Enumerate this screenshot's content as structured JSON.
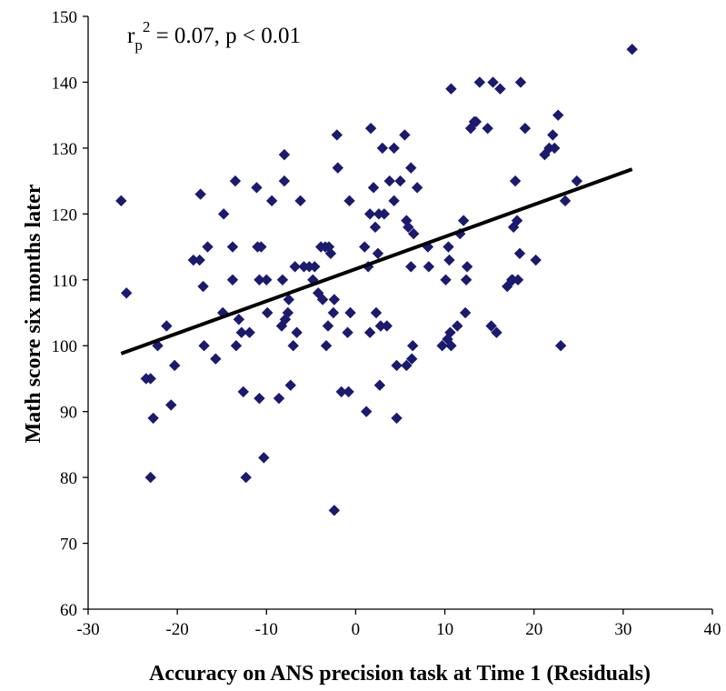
{
  "chart_data": {
    "type": "scatter",
    "title": "",
    "xlabel": "Accuracy on ANS precision task at Time 1 (Residuals)",
    "ylabel": "Math score six months later",
    "xlim": [
      -30,
      40
    ],
    "ylim": [
      60,
      150
    ],
    "xticks": [
      "-30",
      "-20",
      "-10",
      "0",
      "10",
      "20",
      "30",
      "40"
    ],
    "yticks": [
      "60",
      "70",
      "80",
      "90",
      "100",
      "110",
      "120",
      "130",
      "140",
      "150"
    ],
    "grid": false,
    "legend": "none",
    "marker_color": "#1a1a6e",
    "line_color": "#000000",
    "annotation": {
      "prefix": "r",
      "subscript": "p",
      "superscript": "2",
      "suffix": " = 0.07, p < 0.01"
    },
    "fit_line": {
      "x": [
        -26.3,
        31.0
      ],
      "y": [
        98.8,
        126.8
      ]
    },
    "points": [
      [
        -26.3,
        122
      ],
      [
        -25.7,
        108
      ],
      [
        -23.5,
        95
      ],
      [
        -23.0,
        95
      ],
      [
        -23.0,
        80
      ],
      [
        -22.7,
        89
      ],
      [
        -22.2,
        100
      ],
      [
        -21.2,
        103
      ],
      [
        -20.7,
        91
      ],
      [
        -20.3,
        97
      ],
      [
        -18.2,
        113
      ],
      [
        -17.5,
        113
      ],
      [
        -17.4,
        123
      ],
      [
        -17.1,
        109
      ],
      [
        -17.0,
        100
      ],
      [
        -16.6,
        115
      ],
      [
        -15.7,
        98
      ],
      [
        -14.9,
        105
      ],
      [
        -14.8,
        120
      ],
      [
        -13.8,
        115
      ],
      [
        -13.8,
        110
      ],
      [
        -13.5,
        125
      ],
      [
        -13.4,
        100
      ],
      [
        -13.1,
        104
      ],
      [
        -12.8,
        102
      ],
      [
        -12.6,
        93
      ],
      [
        -12.3,
        80
      ],
      [
        -11.9,
        102
      ],
      [
        -11.1,
        124
      ],
      [
        -11.0,
        115
      ],
      [
        -10.8,
        110
      ],
      [
        -10.6,
        115
      ],
      [
        -10.8,
        92
      ],
      [
        -10.3,
        83
      ],
      [
        -10.0,
        110
      ],
      [
        -9.9,
        105
      ],
      [
        -9.4,
        122
      ],
      [
        -8.6,
        92
      ],
      [
        -8.3,
        103
      ],
      [
        -8.2,
        110
      ],
      [
        -8.0,
        129
      ],
      [
        -8.0,
        125
      ],
      [
        -7.9,
        104
      ],
      [
        -7.6,
        105
      ],
      [
        -7.3,
        94
      ],
      [
        -7.5,
        107
      ],
      [
        -7.0,
        100
      ],
      [
        -6.8,
        112
      ],
      [
        -6.6,
        102
      ],
      [
        -6.2,
        122
      ],
      [
        -5.8,
        112
      ],
      [
        -5.2,
        112
      ],
      [
        -4.8,
        110
      ],
      [
        -4.6,
        112
      ],
      [
        -4.2,
        108
      ],
      [
        -3.9,
        115
      ],
      [
        -3.7,
        107
      ],
      [
        -3.4,
        115
      ],
      [
        -3.3,
        100
      ],
      [
        -3.1,
        103
      ],
      [
        -3.0,
        115
      ],
      [
        -2.8,
        114
      ],
      [
        -2.4,
        107
      ],
      [
        -2.5,
        105
      ],
      [
        -2.4,
        75
      ],
      [
        -2.1,
        132
      ],
      [
        -2.0,
        127
      ],
      [
        -1.6,
        93
      ],
      [
        -0.9,
        102
      ],
      [
        -0.8,
        93
      ],
      [
        -0.7,
        122
      ],
      [
        -0.6,
        105
      ],
      [
        1.0,
        115
      ],
      [
        1.2,
        90
      ],
      [
        1.4,
        112
      ],
      [
        1.6,
        120
      ],
      [
        1.6,
        102
      ],
      [
        1.7,
        133
      ],
      [
        2.0,
        124
      ],
      [
        2.2,
        118
      ],
      [
        2.3,
        105
      ],
      [
        2.5,
        114
      ],
      [
        2.6,
        120
      ],
      [
        2.7,
        94
      ],
      [
        2.8,
        103
      ],
      [
        3.0,
        130
      ],
      [
        3.2,
        120
      ],
      [
        3.5,
        103
      ],
      [
        3.8,
        125
      ],
      [
        4.3,
        130
      ],
      [
        4.3,
        122
      ],
      [
        4.6,
        89
      ],
      [
        4.6,
        97
      ],
      [
        5.0,
        125
      ],
      [
        5.5,
        132
      ],
      [
        5.7,
        119
      ],
      [
        5.7,
        97
      ],
      [
        5.9,
        118
      ],
      [
        6.2,
        112
      ],
      [
        6.2,
        127
      ],
      [
        6.3,
        98
      ],
      [
        6.4,
        100
      ],
      [
        6.5,
        117
      ],
      [
        6.9,
        124
      ],
      [
        8.1,
        115
      ],
      [
        8.2,
        112
      ],
      [
        9.7,
        100
      ],
      [
        10.1,
        110
      ],
      [
        10.3,
        101
      ],
      [
        10.4,
        115
      ],
      [
        10.5,
        113
      ],
      [
        10.6,
        102
      ],
      [
        10.7,
        139
      ],
      [
        10.7,
        100
      ],
      [
        11.4,
        103
      ],
      [
        11.7,
        117
      ],
      [
        12.1,
        119
      ],
      [
        12.3,
        105
      ],
      [
        12.4,
        110
      ],
      [
        12.5,
        112
      ],
      [
        12.9,
        133
      ],
      [
        13.3,
        134
      ],
      [
        13.5,
        134
      ],
      [
        13.9,
        140
      ],
      [
        14.8,
        133
      ],
      [
        15.2,
        103
      ],
      [
        15.4,
        140
      ],
      [
        15.8,
        102
      ],
      [
        16.2,
        139
      ],
      [
        17.0,
        109
      ],
      [
        17.5,
        110
      ],
      [
        17.6,
        110
      ],
      [
        17.7,
        118
      ],
      [
        17.9,
        125
      ],
      [
        18.1,
        119
      ],
      [
        18.2,
        110
      ],
      [
        18.4,
        114
      ],
      [
        18.5,
        140
      ],
      [
        19.0,
        133
      ],
      [
        20.2,
        113
      ],
      [
        21.2,
        129
      ],
      [
        21.7,
        130
      ],
      [
        22.1,
        132
      ],
      [
        22.3,
        130
      ],
      [
        22.7,
        135
      ],
      [
        23.0,
        100
      ],
      [
        23.5,
        122
      ],
      [
        24.8,
        125
      ],
      [
        31.0,
        145
      ]
    ]
  }
}
